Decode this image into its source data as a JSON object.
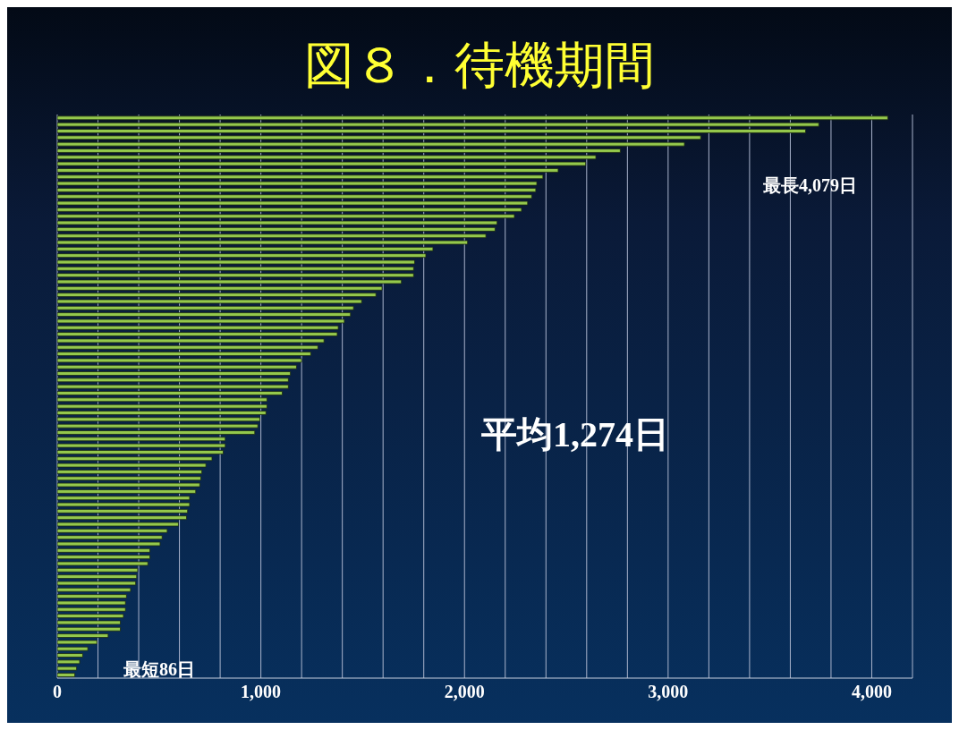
{
  "chart_data": {
    "type": "bar",
    "title": "図８．待機期間",
    "orientation": "horizontal",
    "categories": [
      null,
      null,
      null,
      null,
      null,
      null,
      null,
      null,
      null,
      null,
      null,
      null,
      null,
      null,
      null,
      null,
      null,
      null,
      null,
      null,
      null,
      null,
      null,
      null,
      null,
      null,
      null,
      null,
      null,
      null,
      null,
      null,
      null,
      null,
      null,
      null,
      null,
      null,
      null,
      null,
      null,
      null,
      null,
      null,
      null,
      null,
      null,
      null,
      null,
      null,
      null,
      null,
      null,
      null,
      null,
      null,
      null,
      null,
      null,
      null,
      null,
      null,
      null,
      null,
      null,
      null,
      null,
      null,
      null,
      null,
      null,
      null,
      null,
      null,
      null,
      null,
      null,
      null,
      null,
      null,
      null,
      null,
      null,
      null,
      null,
      null
    ],
    "values": [
      4079,
      3740,
      3675,
      3160,
      3080,
      2765,
      2645,
      2595,
      2460,
      2385,
      2355,
      2350,
      2330,
      2310,
      2280,
      2245,
      2160,
      2150,
      2105,
      2015,
      1845,
      1810,
      1755,
      1750,
      1750,
      1690,
      1595,
      1565,
      1495,
      1455,
      1440,
      1410,
      1380,
      1375,
      1310,
      1280,
      1245,
      1200,
      1175,
      1145,
      1135,
      1135,
      1105,
      1030,
      1030,
      1025,
      995,
      985,
      970,
      825,
      825,
      815,
      760,
      730,
      710,
      705,
      700,
      680,
      650,
      650,
      640,
      635,
      595,
      540,
      515,
      505,
      455,
      455,
      445,
      395,
      390,
      385,
      360,
      340,
      335,
      335,
      325,
      310,
      310,
      250,
      195,
      150,
      125,
      110,
      95,
      86
    ],
    "color": "#94c84c",
    "xlim": [
      0,
      4200
    ],
    "xticks": [
      0,
      {
        "value": 200,
        "label": null
      },
      {
        "value": 400,
        "label": null
      },
      {
        "value": 600,
        "label": null
      },
      {
        "value": 800,
        "label": null
      },
      {
        "value": 1000,
        "label": "1,000"
      },
      {
        "value": 1200,
        "label": null
      },
      {
        "value": 1400,
        "label": null
      },
      {
        "value": 1600,
        "label": null
      },
      {
        "value": 1800,
        "label": null
      },
      {
        "value": 2000,
        "label": "2,000"
      },
      {
        "value": 2200,
        "label": null
      },
      {
        "value": 2400,
        "label": null
      },
      {
        "value": 2600,
        "label": null
      },
      {
        "value": 2800,
        "label": null
      },
      {
        "value": 3000,
        "label": "3,000"
      },
      {
        "value": 3200,
        "label": null
      },
      {
        "value": 3400,
        "label": null
      },
      {
        "value": 3600,
        "label": null
      },
      {
        "value": 3800,
        "label": null
      },
      {
        "value": 4000,
        "label": "4,000"
      },
      {
        "value": 4200,
        "label": null
      }
    ],
    "grid": "x",
    "annotations": [
      "最長4,079日",
      "平均1,274日",
      "最短86日"
    ]
  }
}
